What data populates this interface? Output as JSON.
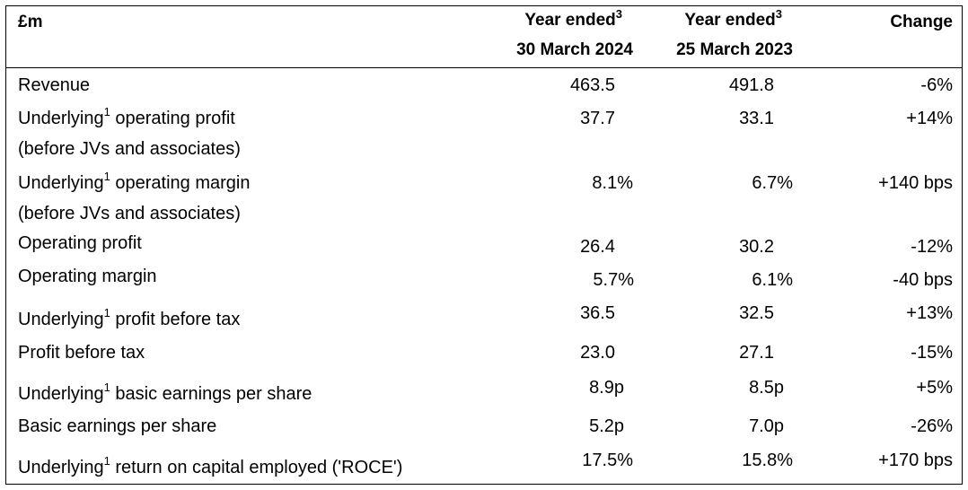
{
  "header": {
    "unit": "£m",
    "col1_line1": "Year ended",
    "col1_sup": "3",
    "col1_line2": "30 March 2024",
    "col2_line1": "Year ended",
    "col2_sup": "3",
    "col2_line2": "25 March 2023",
    "col3": "Change"
  },
  "rows": [
    {
      "label": "Revenue",
      "v2024": "463.5",
      "v2023": "491.8",
      "change": "-6%"
    },
    {
      "label_pre": "Underlying",
      "sup": "1",
      "label_post": " operating profit",
      "label_line2": "(before JVs and associates)",
      "v2024": "37.7",
      "v2023": "33.1",
      "change": "+14%"
    },
    {
      "label_pre": "Underlying",
      "sup": "1",
      "label_post": " operating margin",
      "label_line2": "(before JVs and associates)",
      "v2024": "8.1%",
      "v2023": "6.7%",
      "change": "+140 bps"
    },
    {
      "label": "Operating profit",
      "v2024": "26.4",
      "v2023": "30.2",
      "change": "-12%"
    },
    {
      "label": "Operating margin",
      "v2024": "5.7%",
      "v2023": "6.1%",
      "change": "-40 bps"
    },
    {
      "label_pre": "Underlying",
      "sup": "1",
      "label_post": " profit before tax",
      "v2024": "36.5",
      "v2023": "32.5",
      "change": "+13%"
    },
    {
      "label": "Profit before tax",
      "v2024": "23.0",
      "v2023": "27.1",
      "change": "-15%"
    },
    {
      "label_pre": "Underlying",
      "sup": "1",
      "label_post": " basic earnings per share",
      "v2024": "8.9p",
      "v2023": "8.5p",
      "change": "+5%"
    },
    {
      "label": "Basic earnings per share",
      "v2024": "5.2p",
      "v2023": "7.0p",
      "change": "-26%"
    },
    {
      "label_pre": "Underlying",
      "sup": "1",
      "label_post": " return on capital employed ('ROCE')",
      "v2024": "17.5%",
      "v2023": "15.8%",
      "change": "+170 bps"
    }
  ]
}
